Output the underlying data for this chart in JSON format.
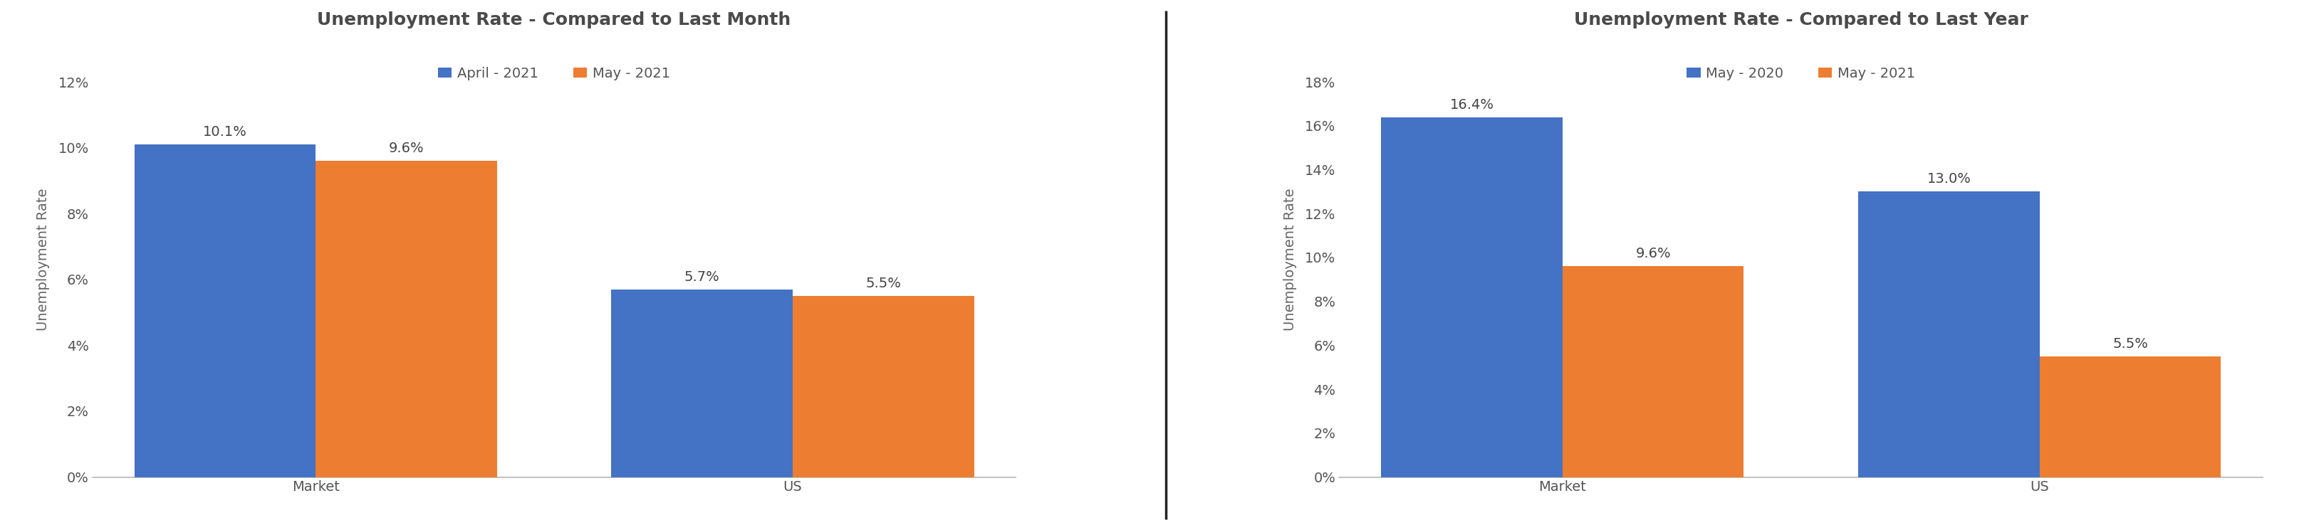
{
  "chart1": {
    "title": "Unemployment Rate - Compared to Last Month",
    "legend_labels": [
      "April - 2021",
      "May - 2021"
    ],
    "categories": [
      "Market",
      "US"
    ],
    "series1_values": [
      10.1,
      5.7
    ],
    "series2_values": [
      9.6,
      5.5
    ],
    "color1": "#4472C4",
    "color2": "#ED7D31",
    "ylabel": "Unemployment Rate",
    "yticks": [
      0,
      2,
      4,
      6,
      8,
      10,
      12
    ],
    "ylim": [
      0,
      13.2
    ],
    "bar_labels1": [
      "10.1%",
      "5.7%"
    ],
    "bar_labels2": [
      "9.6%",
      "5.5%"
    ]
  },
  "chart2": {
    "title": "Unemployment Rate - Compared to Last Year",
    "legend_labels": [
      "May - 2020",
      "May - 2021"
    ],
    "categories": [
      "Market",
      "US"
    ],
    "series1_values": [
      16.4,
      13.0
    ],
    "series2_values": [
      9.6,
      5.5
    ],
    "color1": "#4472C4",
    "color2": "#ED7D31",
    "ylabel": "Unemployment Rate",
    "yticks": [
      0,
      2,
      4,
      6,
      8,
      10,
      12,
      14,
      16,
      18
    ],
    "ylim": [
      0,
      19.8
    ],
    "bar_labels1": [
      "16.4%",
      "13.0%"
    ],
    "bar_labels2": [
      "9.6%",
      "5.5%"
    ]
  },
  "bg_color": "#ffffff",
  "title_fontsize": 18,
  "label_fontsize": 14,
  "tick_fontsize": 14,
  "annot_fontsize": 14,
  "legend_fontsize": 14,
  "bar_width": 0.38,
  "separator_color": "#222222",
  "separator_linewidth": 2.5
}
